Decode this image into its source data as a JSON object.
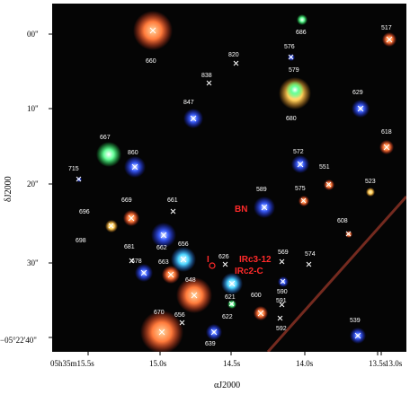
{
  "sources": [
    "660",
    "686",
    "576",
    "820",
    "838",
    "579",
    "680",
    "517",
    "847",
    "629",
    "667",
    "860",
    "572",
    "618",
    "715",
    "551",
    "575",
    "523",
    "589",
    "669",
    "661",
    "696",
    "698",
    "608",
    "681",
    "662",
    "656",
    "626",
    "569",
    "574",
    "678",
    "663",
    "648",
    "590",
    "621",
    "600",
    "591",
    "622",
    "592",
    "670",
    "656b",
    "639",
    "539"
  ],
  "annotations": {
    "bn": "BN",
    "i": "I",
    "irc312": "IRc3-12",
    "irc2c": "IRc2-C"
  },
  "axes": {
    "y_title": "δJ2000",
    "x_title": "αJ2000",
    "y_ticks": [
      "00\"",
      "10\"",
      "20\"",
      "30\"",
      "−05°22'40\""
    ],
    "x_ticks": [
      "05h35m15.5s",
      "15.0s",
      "14.5s",
      "14.0s",
      "13.5s",
      "13.0s"
    ]
  },
  "colors": {
    "blue_star": "#2a44ff",
    "orange_star": "#ff7a3a",
    "green_star": "#5dff8a",
    "red_label": "#ff2a2a"
  }
}
